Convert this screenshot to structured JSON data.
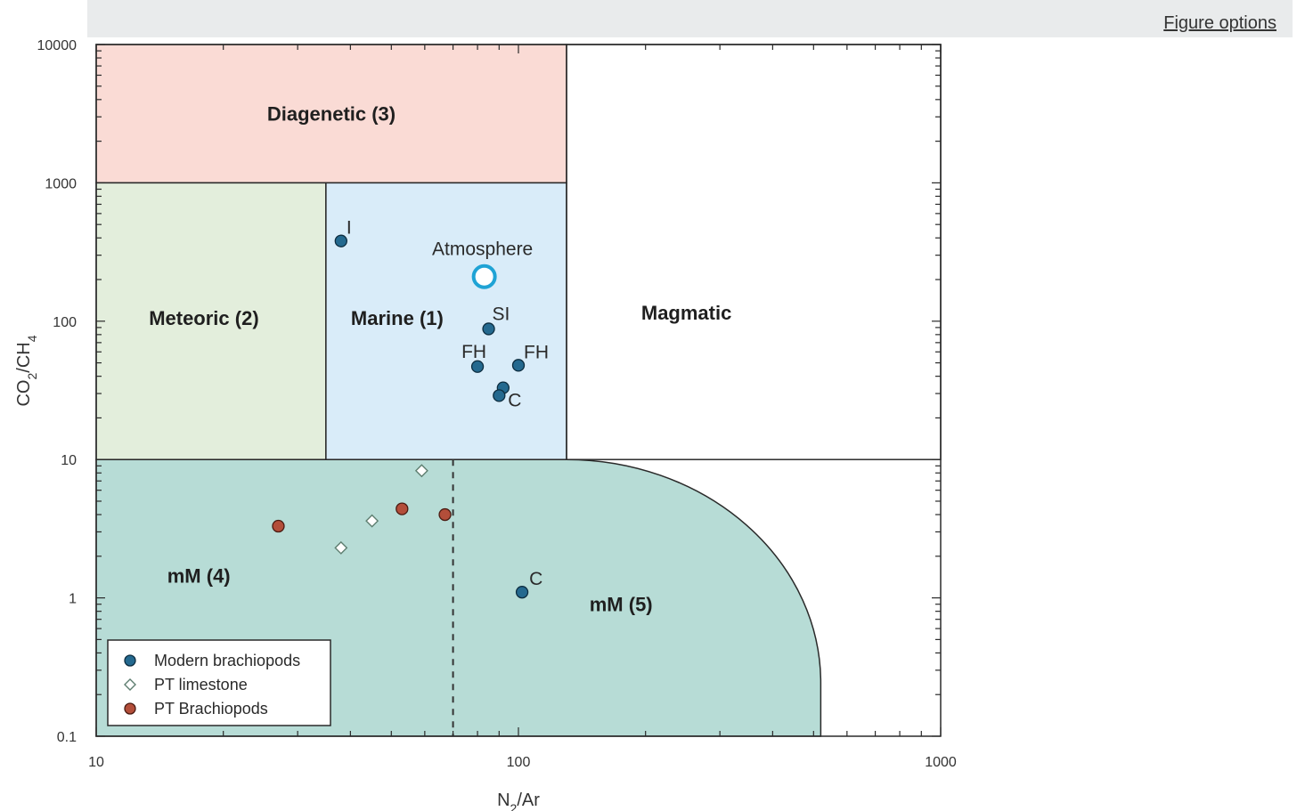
{
  "page": {
    "figure_options_label": "Figure options"
  },
  "chart_data": {
    "type": "scatter",
    "xlabel": "N2/Ar",
    "ylabel": "CO2/CH4",
    "xscale": "log",
    "yscale": "log",
    "xlim": [
      10,
      1000
    ],
    "ylim": [
      0.1,
      10000
    ],
    "x_tick_labels": [
      "10",
      "100",
      "1000"
    ],
    "y_tick_labels": [
      "0.1",
      "1",
      "10",
      "100",
      "1000",
      "10000"
    ],
    "grid": false,
    "legend_position": "bottom-left",
    "colors": {
      "diagenetic": "#fadbd5",
      "meteoric": "#e3eedc",
      "marine": "#d9ecf9",
      "mm": "#b7dcd6",
      "modern": "#24698f",
      "pt_brachiopods": "#b34e3a",
      "pt_limestone_edge": "#5e7e70",
      "atmosphere": "#1fa3d5"
    },
    "regions": [
      {
        "name": "Diagenetic (3)",
        "x_range": [
          10,
          130
        ],
        "y_range": [
          1000,
          10000
        ]
      },
      {
        "name": "Meteoric (2)",
        "x_range": [
          10,
          35
        ],
        "y_range": [
          10,
          1000
        ]
      },
      {
        "name": "Marine (1)",
        "x_range": [
          35,
          130
        ],
        "y_range": [
          10,
          1000
        ]
      },
      {
        "name": "Magmatic",
        "x_range": [
          130,
          1000
        ],
        "y_range": [
          10,
          10000
        ]
      },
      {
        "name": "mM (4)",
        "x_range": [
          10,
          70
        ],
        "y_range": [
          0.1,
          10
        ]
      },
      {
        "name": "mM (5)",
        "x_range": [
          70,
          520
        ],
        "y_range": [
          0.1,
          10
        ]
      }
    ],
    "divider_x": 70,
    "atmosphere": {
      "label": "Atmosphere",
      "x": 83,
      "y": 210
    },
    "series": [
      {
        "name": "Modern brachiopods",
        "marker": "circle",
        "points": [
          {
            "x": 38,
            "y": 380,
            "label": "I"
          },
          {
            "x": 85,
            "y": 88,
            "label": "SI"
          },
          {
            "x": 80,
            "y": 47,
            "label": "FH"
          },
          {
            "x": 100,
            "y": 48,
            "label": "FH"
          },
          {
            "x": 92,
            "y": 33,
            "label": ""
          },
          {
            "x": 90,
            "y": 29,
            "label": "C"
          },
          {
            "x": 102,
            "y": 1.1,
            "label": "C"
          }
        ]
      },
      {
        "name": "PT limestone",
        "marker": "diamond",
        "points": [
          {
            "x": 38,
            "y": 2.3
          },
          {
            "x": 45,
            "y": 3.6
          },
          {
            "x": 59,
            "y": 8.3
          }
        ]
      },
      {
        "name": "PT Brachiopods",
        "marker": "circle",
        "points": [
          {
            "x": 27,
            "y": 3.3
          },
          {
            "x": 53,
            "y": 4.4
          },
          {
            "x": 67,
            "y": 4.0
          }
        ]
      }
    ]
  }
}
